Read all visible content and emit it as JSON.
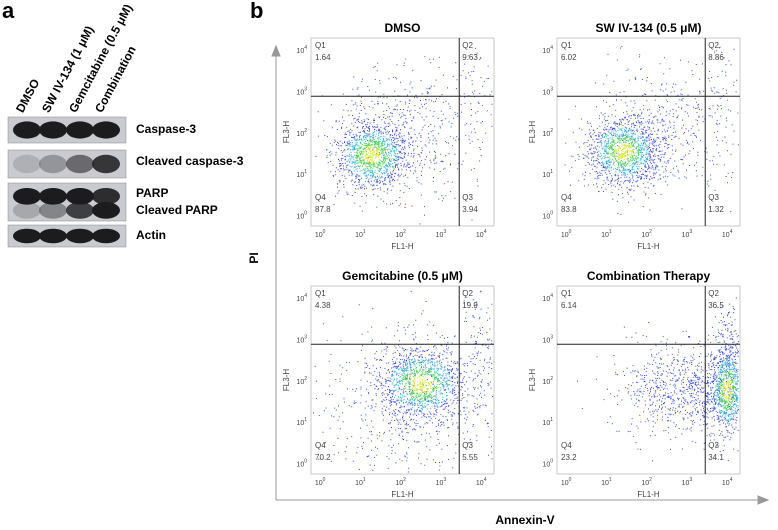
{
  "panel_a": {
    "label": "a",
    "lanes": [
      "DMSO",
      "SW IV-134 (1 μM)",
      "Gemcitabine (0.5 μM)",
      "Combination"
    ],
    "bands": [
      "Caspase-3",
      "Cleaved caspase-3",
      "PARP",
      "Cleaved PARP",
      "Actin"
    ]
  },
  "panel_b": {
    "label": "b",
    "y_label": "PI",
    "x_label": "Annexin-V",
    "plot_x_axis": "FL1-H",
    "plot_y_axis": "FL3-H",
    "tick_base": "10",
    "tick_exponents": [
      "0",
      "1",
      "2",
      "3",
      "4"
    ],
    "plots": [
      {
        "title": "DMSO",
        "quadrants": [
          {
            "name": "Q1",
            "value": 1.64
          },
          {
            "name": "Q2",
            "value": 9.63
          },
          {
            "name": "Q3",
            "value": 3.94
          },
          {
            "name": "Q4",
            "value": 87.8
          }
        ]
      },
      {
        "title": "SW IV-134 (0.5 μM)",
        "quadrants": [
          {
            "name": "Q1",
            "value": 6.02
          },
          {
            "name": "Q2",
            "value": 8.86
          },
          {
            "name": "Q3",
            "value": 1.32
          },
          {
            "name": "Q4",
            "value": 83.8
          }
        ]
      },
      {
        "title": "Gemcitabine (0.5 μM)",
        "quadrants": [
          {
            "name": "Q1",
            "value": 4.38
          },
          {
            "name": "Q2",
            "value": 19.9
          },
          {
            "name": "Q3",
            "value": 5.55
          },
          {
            "name": "Q4",
            "value": 70.2
          }
        ]
      },
      {
        "title": "Combination Therapy",
        "quadrants": [
          {
            "name": "Q1",
            "value": 6.14
          },
          {
            "name": "Q2",
            "value": 36.5
          },
          {
            "name": "Q3",
            "value": 34.1
          },
          {
            "name": "Q4",
            "value": 23.2
          }
        ]
      }
    ]
  }
}
